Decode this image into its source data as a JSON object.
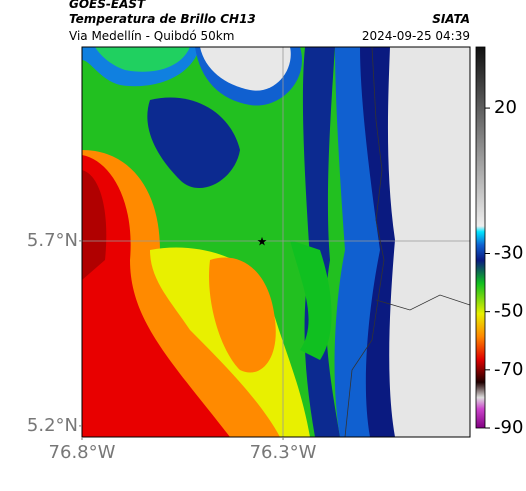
{
  "header": {
    "title": "GOES-EAST",
    "subtitle": "Temperatura de Brillo CH13",
    "location": "Via Medellín - Quibdó 50km",
    "source": "SIATA",
    "datetime": "2024-09-25 04:39"
  },
  "map": {
    "lat_lim": [
      5.17,
      6.224
    ],
    "lon_lim": [
      -76.8,
      -75.835
    ],
    "lat_ticks": [
      {
        "value": 5.7,
        "label": "5.7°N"
      },
      {
        "value": 5.2,
        "label": "5.2°N"
      }
    ],
    "lon_ticks": [
      {
        "value": -76.8,
        "label": "76.8°W"
      },
      {
        "value": -76.3,
        "label": "76.3°W"
      }
    ]
  },
  "colorbar": {
    "lim": [
      41,
      -90
    ],
    "ticks": [
      20,
      -30,
      -50,
      -70,
      -90
    ]
  }
}
